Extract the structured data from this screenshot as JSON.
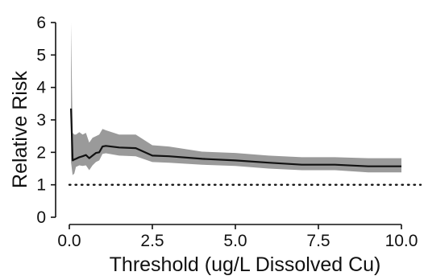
{
  "chart_data": {
    "type": "line",
    "title": "",
    "xlabel": "Threshold (ug/L Dissolved Cu)",
    "ylabel": "Relative Risk",
    "xlim": [
      0,
      10
    ],
    "ylim": [
      0,
      6
    ],
    "x_ticks": [
      0.0,
      2.5,
      5.0,
      7.5,
      10.0
    ],
    "x_tick_labels": [
      "0.0",
      "2.5",
      "5.0",
      "7.5",
      "10.0"
    ],
    "y_ticks": [
      0,
      1,
      2,
      3,
      4,
      5,
      6
    ],
    "y_tick_labels": [
      "0",
      "1",
      "2",
      "3",
      "4",
      "5",
      "6"
    ],
    "grid": false,
    "colors": {
      "line": "#111111",
      "band": "#9a9a9a",
      "reference": "#111111"
    },
    "series": [
      {
        "x": [
          0.05,
          0.1,
          0.15,
          0.2,
          0.3,
          0.4,
          0.5,
          0.6,
          0.7,
          0.8,
          0.9,
          1.0,
          1.1,
          1.5,
          2.0,
          2.5,
          3.0,
          4.0,
          5.0,
          6.0,
          7.0,
          8.0,
          9.0,
          10.0
        ],
        "y": [
          3.35,
          1.75,
          1.78,
          1.8,
          1.85,
          1.88,
          1.92,
          1.82,
          1.9,
          1.98,
          2.0,
          2.18,
          2.2,
          2.15,
          2.13,
          1.9,
          1.88,
          1.8,
          1.75,
          1.68,
          1.62,
          1.62,
          1.57,
          1.57
        ],
        "lower": [
          1.7,
          1.3,
          1.35,
          1.55,
          1.6,
          1.58,
          1.6,
          1.45,
          1.6,
          1.7,
          1.75,
          1.95,
          1.97,
          1.9,
          1.88,
          1.7,
          1.68,
          1.62,
          1.58,
          1.5,
          1.45,
          1.45,
          1.38,
          1.38
        ],
        "upper": [
          6.0,
          2.6,
          2.55,
          2.55,
          2.62,
          2.55,
          2.6,
          2.3,
          2.45,
          2.5,
          2.55,
          2.72,
          2.68,
          2.55,
          2.55,
          2.22,
          2.18,
          2.02,
          1.98,
          1.9,
          1.85,
          1.85,
          1.82,
          1.82
        ]
      }
    ],
    "reference_line": {
      "y": 1,
      "style": "dotted"
    }
  }
}
